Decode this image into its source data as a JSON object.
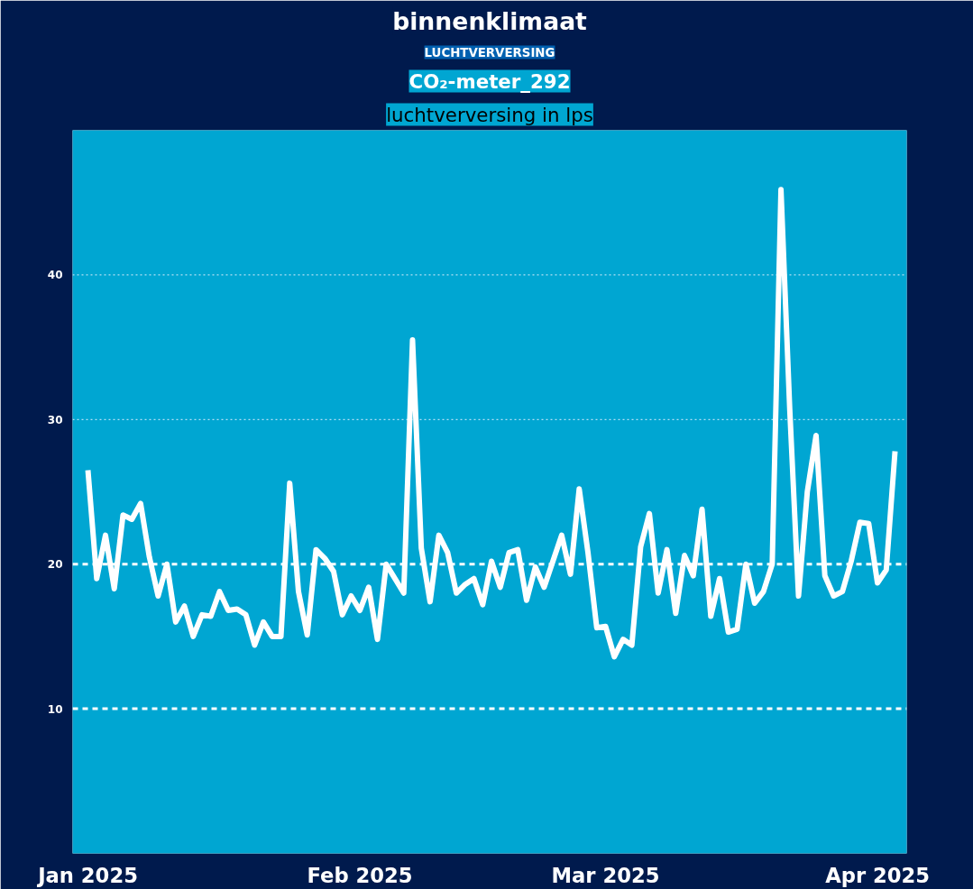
{
  "chart_data": {
    "type": "line",
    "title": "binnenklimaat",
    "subtitle": "CO₂-meter_292",
    "annotations": [
      "LUCHTVERVERSING",
      "luchtverversing in lps"
    ],
    "x": [
      "2025-01-01",
      "2025-01-02",
      "2025-01-03",
      "2025-01-04",
      "2025-01-05",
      "2025-01-06",
      "2025-01-07",
      "2025-01-08",
      "2025-01-09",
      "2025-01-10",
      "2025-01-11",
      "2025-01-12",
      "2025-01-13",
      "2025-01-14",
      "2025-01-15",
      "2025-01-16",
      "2025-01-17",
      "2025-01-18",
      "2025-01-19",
      "2025-01-20",
      "2025-01-21",
      "2025-01-22",
      "2025-01-23",
      "2025-01-24",
      "2025-01-25",
      "2025-01-26",
      "2025-01-27",
      "2025-01-28",
      "2025-01-29",
      "2025-01-30",
      "2025-01-31",
      "2025-02-01",
      "2025-02-02",
      "2025-02-03",
      "2025-02-04",
      "2025-02-05",
      "2025-02-06",
      "2025-02-07",
      "2025-02-08",
      "2025-02-09",
      "2025-02-10",
      "2025-02-11",
      "2025-02-12",
      "2025-02-13",
      "2025-02-14",
      "2025-02-15",
      "2025-02-16",
      "2025-02-17",
      "2025-02-18",
      "2025-02-19",
      "2025-02-20",
      "2025-02-21",
      "2025-02-22",
      "2025-02-23",
      "2025-02-24",
      "2025-02-25",
      "2025-02-26",
      "2025-02-27",
      "2025-02-28",
      "2025-03-01",
      "2025-03-02",
      "2025-03-03",
      "2025-03-04",
      "2025-03-05",
      "2025-03-06",
      "2025-03-07",
      "2025-03-08",
      "2025-03-09",
      "2025-03-10",
      "2025-03-11",
      "2025-03-12",
      "2025-03-13",
      "2025-03-14",
      "2025-03-15",
      "2025-03-16",
      "2025-03-17",
      "2025-03-18",
      "2025-03-19",
      "2025-03-20",
      "2025-03-21",
      "2025-03-22",
      "2025-03-23",
      "2025-03-24",
      "2025-03-25",
      "2025-03-26",
      "2025-03-27",
      "2025-03-28",
      "2025-03-29",
      "2025-03-30",
      "2025-03-31",
      "2025-04-01",
      "2025-04-02",
      "2025-04-03"
    ],
    "series": [
      {
        "color": "#ffffff",
        "values": [
          26.5,
          19.0,
          22,
          18.3,
          23.4,
          23.1,
          24.2,
          20.5,
          17.8,
          20,
          16,
          17.1,
          15,
          16.5,
          16.4,
          18.1,
          16.8,
          16.9,
          16.5,
          14.4,
          16,
          15,
          15,
          25.6,
          18.1,
          15.1,
          21,
          20.4,
          19.5,
          16.5,
          17.8,
          16.8,
          18.4,
          14.8,
          20,
          19,
          18,
          35.5,
          21.1,
          17.4,
          22,
          20.8,
          18,
          18.6,
          19,
          17.2,
          20.2,
          18.4,
          20.8,
          21,
          17.5,
          19.8,
          18.4,
          20.2,
          22,
          19.3,
          25.2,
          20.8,
          15.6,
          15.7,
          13.6,
          14.8,
          14.4,
          21.2,
          23.5,
          18,
          21,
          16.6,
          20.6,
          19.2,
          23.8,
          16.4,
          19,
          15.3,
          15.5,
          20,
          17.3,
          18.1,
          20,
          45.9,
          30.7,
          17.8,
          25,
          28.9,
          19.2,
          17.8,
          18.1,
          20.2,
          22.9,
          22.8,
          18.7,
          19.6,
          27.8
        ]
      }
    ],
    "xlim": [
      "2024-12-30T06:00",
      "2025-04-04T08:00"
    ],
    "xticks": [
      {
        "value": "2025-01-01",
        "label": "Jan 2025"
      },
      {
        "value": "2025-02-01",
        "label": "Feb 2025"
      },
      {
        "value": "2025-03-01",
        "label": "Mar 2025"
      },
      {
        "value": "2025-04-01",
        "label": "Apr 2025"
      }
    ],
    "ylim": [
      0,
      50
    ],
    "yticks": [
      10,
      20,
      30,
      40
    ],
    "ref_lines": [
      {
        "axis": "y",
        "value": 20,
        "label": null,
        "color": "#ffffff",
        "line_style": "dashed"
      },
      {
        "axis": "y",
        "value": 10,
        "label": null,
        "color": "#ffffff",
        "line_style": "dashed"
      },
      {
        "axis": "y",
        "value": 30,
        "label": null,
        "color": "#dfefff",
        "line_style": "dotted"
      },
      {
        "axis": "y",
        "value": 40,
        "label": null,
        "color": "#dfefff",
        "line_style": "dotted"
      }
    ],
    "marker": "none",
    "line_style": "solid"
  }
}
